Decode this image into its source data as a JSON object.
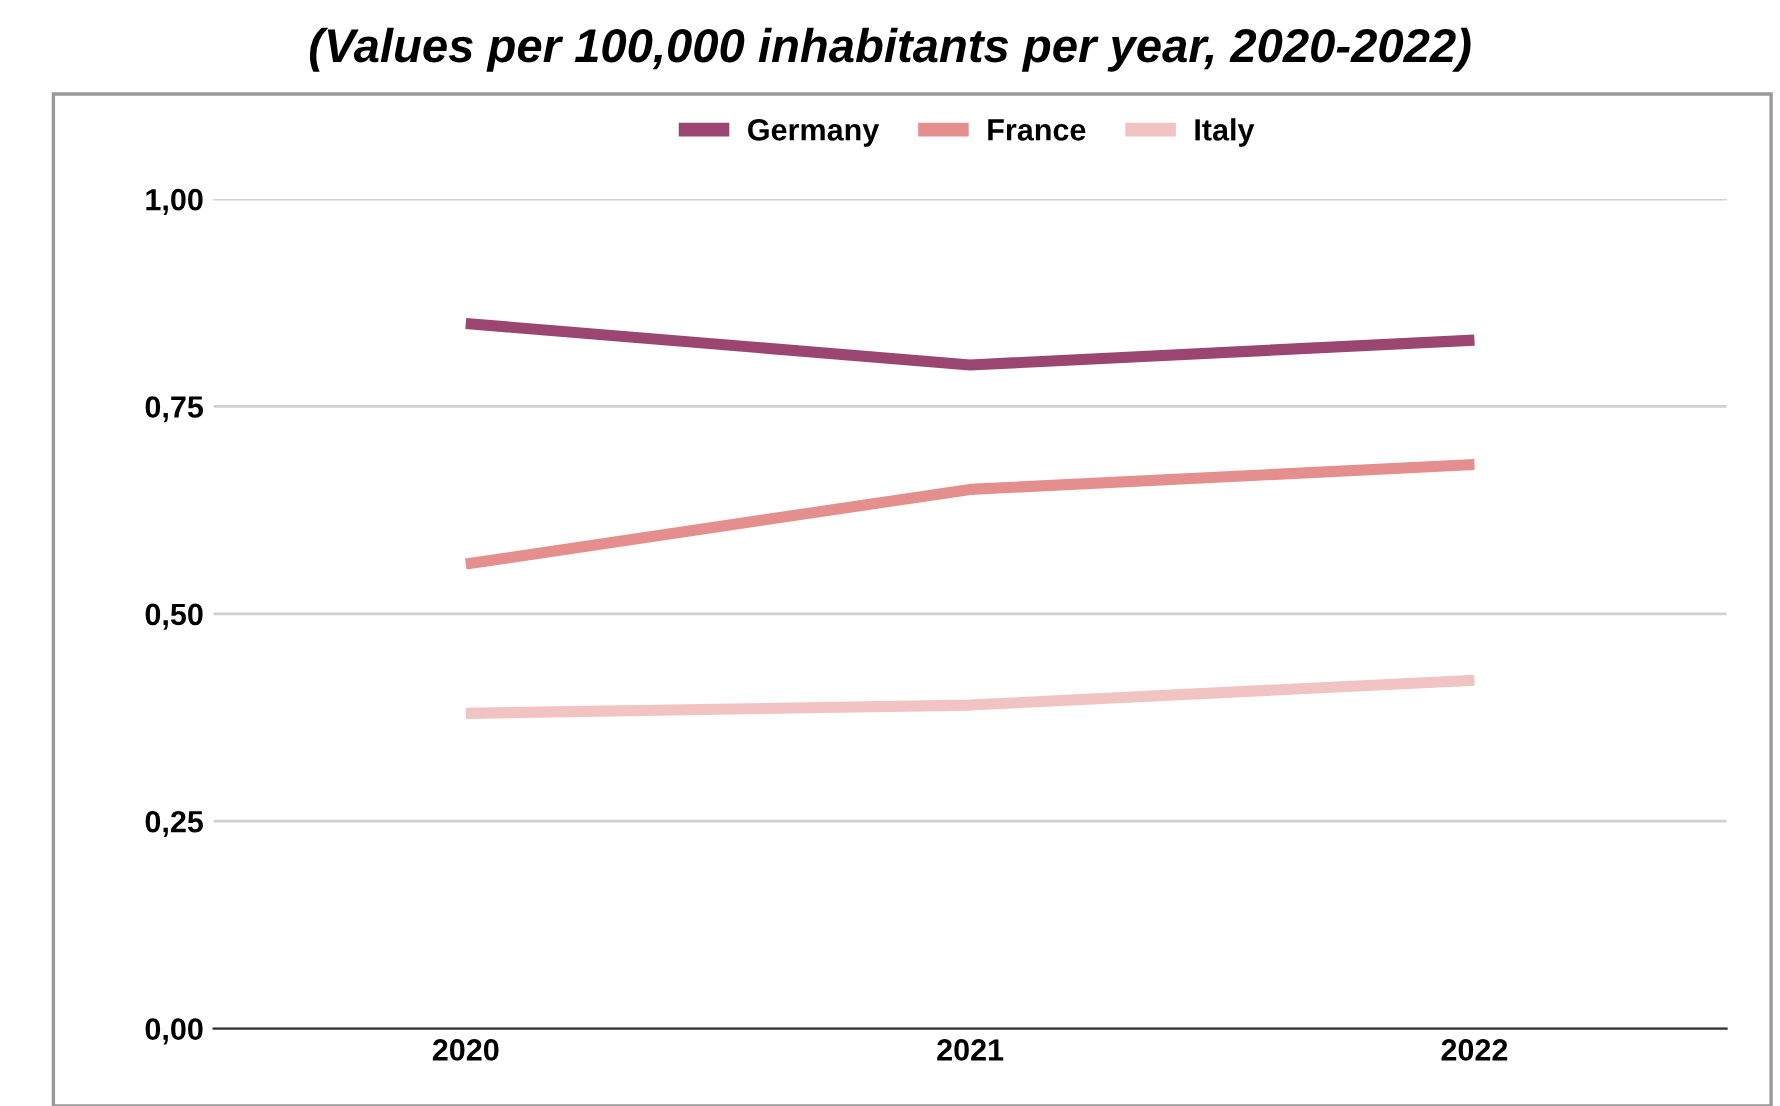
{
  "chart_data": {
    "type": "line",
    "title": "(Values per 100,000 inhabitants per year, 2020-2022)",
    "categories": [
      "2020",
      "2021",
      "2022"
    ],
    "series": [
      {
        "name": "Germany",
        "color": "#9b4670",
        "values": [
          0.85,
          0.8,
          0.83
        ]
      },
      {
        "name": "France",
        "color": "#e58e8e",
        "values": [
          0.56,
          0.65,
          0.68
        ]
      },
      {
        "name": "Italy",
        "color": "#f2c3c3",
        "values": [
          0.38,
          0.39,
          0.42
        ]
      }
    ],
    "ylim": [
      0,
      1.0
    ],
    "yticks": [
      {
        "value": 0,
        "label": "0,00"
      },
      {
        "value": 0.25,
        "label": "0,25"
      },
      {
        "value": 0.5,
        "label": "0,50"
      },
      {
        "value": 0.75,
        "label": "0,75"
      },
      {
        "value": 1.0,
        "label": "1,00"
      }
    ],
    "grid": "y",
    "legend": "top",
    "marker": "none",
    "line_style": "solid"
  }
}
